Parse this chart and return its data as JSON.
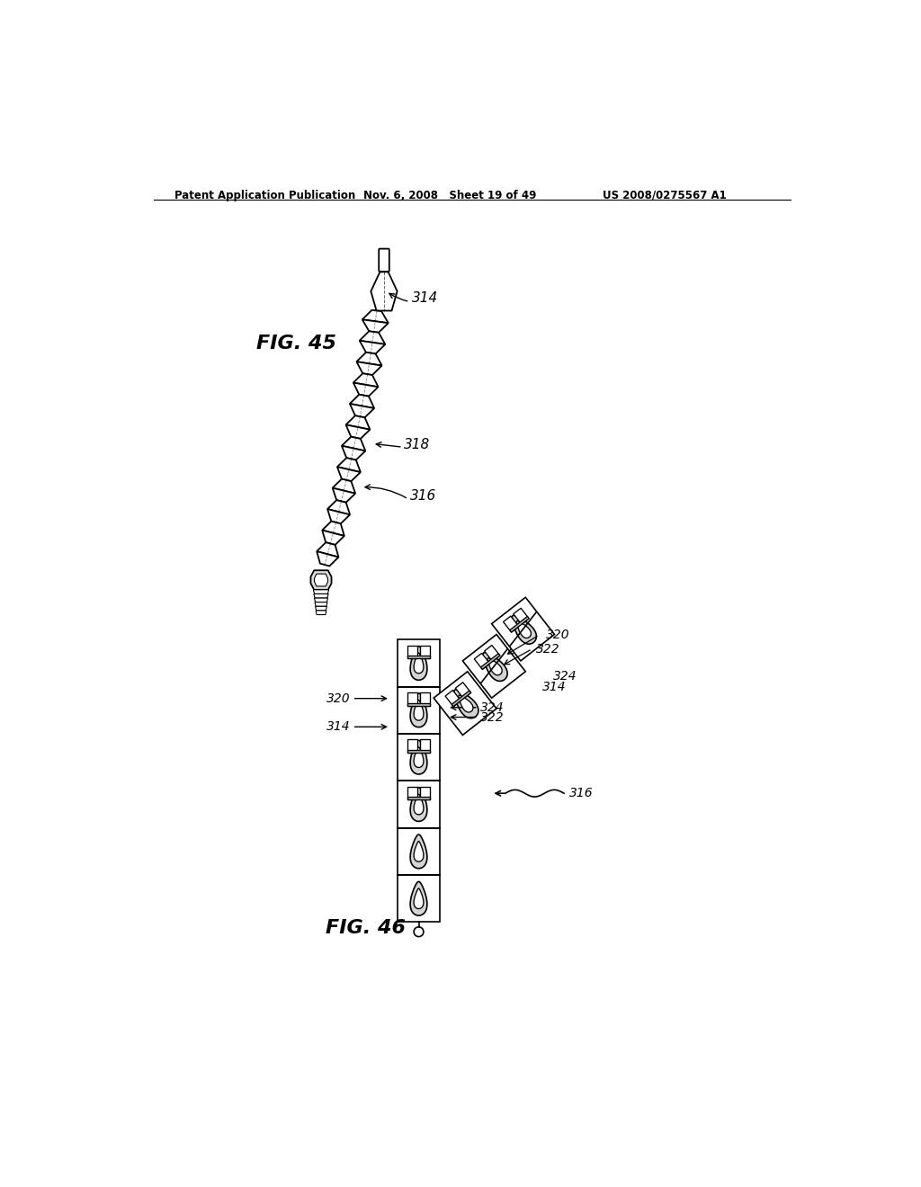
{
  "bg_color": "#ffffff",
  "header_left": "Patent Application Publication",
  "header_mid": "Nov. 6, 2008   Sheet 19 of 49",
  "header_right": "US 2008/0275567 A1",
  "fig45_label": "FIG. 45",
  "fig46_label": "FIG. 46",
  "labels": {
    "314_fig45": "314",
    "318_fig45": "318",
    "316_fig45": "316",
    "320_fig46_left": "320",
    "324_fig46_left": "324",
    "322_fig46_left": "322",
    "314_fig46_left": "314",
    "320_fig46_right": "320",
    "322_fig46_right": "322",
    "324_fig46_right": "324",
    "314_fig46_right": "314",
    "316_fig46": "316"
  }
}
